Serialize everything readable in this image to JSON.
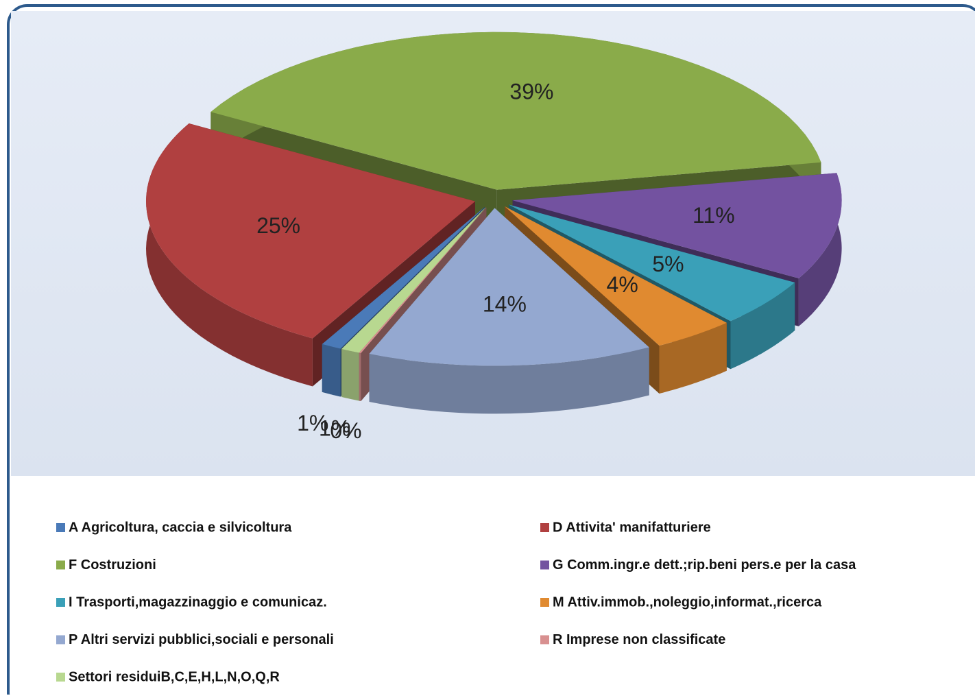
{
  "chart_data": {
    "type": "pie",
    "categories": [
      "A Agricoltura, caccia e silvicoltura",
      "D Attivita' manifatturiere",
      "F Costruzioni",
      "G Comm.ingr.e dett.;rip.beni pers.e per la casa",
      "I Trasporti,magazzinaggio e comunicaz.",
      "M Attiv.immob.,noleggio,informat.,ricerca",
      "P Altri servizi pubblici,sociali e personali",
      "R Imprese non classificate",
      "Settori residuiB,C,E,H,L,N,O,Q,R"
    ],
    "values": [
      1,
      25,
      39,
      11,
      5,
      4,
      14,
      0,
      1
    ],
    "value_labels": [
      "1%",
      "25%",
      "39%",
      "11%",
      "5%",
      "4%",
      "14%",
      "0%",
      "1%"
    ],
    "colors": [
      "#4a7ab8",
      "#b04040",
      "#8aab4a",
      "#7352a0",
      "#3aa0b8",
      "#e08a30",
      "#94a8d0",
      "#d89090",
      "#b8d890"
    ],
    "legend": "bottom"
  }
}
